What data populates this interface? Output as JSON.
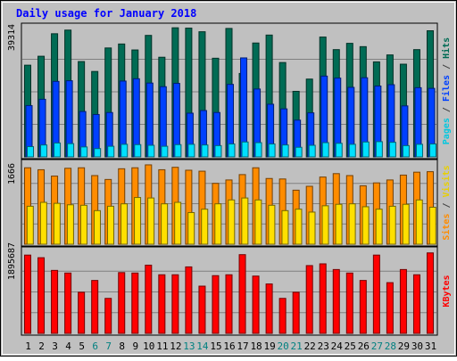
{
  "chart_data": {
    "type": "bar",
    "title": "Daily usage for January 2018",
    "categories": [
      "1",
      "2",
      "3",
      "4",
      "5",
      "6",
      "7",
      "8",
      "9",
      "10",
      "11",
      "12",
      "13",
      "14",
      "15",
      "16",
      "17",
      "18",
      "19",
      "20",
      "21",
      "22",
      "23",
      "24",
      "25",
      "26",
      "27",
      "28",
      "29",
      "30",
      "31"
    ],
    "weekend_days": [
      "6",
      "7",
      "13",
      "14",
      "20",
      "21",
      "27",
      "28"
    ],
    "colors": {
      "background": "#c0c0c0",
      "title": "#0000ff",
      "weekday_label": "#000000",
      "weekend_label": "#008080",
      "hits": "#006b54",
      "files": "#0040ff",
      "pages": "#00e0ff",
      "visits": "#ffe000",
      "sites": "#ff8c00",
      "kbytes": "#ff0000"
    },
    "panels": [
      {
        "id": "hits_files_pages",
        "max_label": "39314",
        "ylim": [
          0,
          39314
        ],
        "right_label": [
          {
            "text": "Pages",
            "color": "#00c8e0"
          },
          {
            "text": " / ",
            "color": "#404040"
          },
          {
            "text": "Files",
            "color": "#0040ff"
          },
          {
            "text": " / ",
            "color": "#404040"
          },
          {
            "text": "Hits",
            "color": "#006b54"
          }
        ],
        "series": [
          {
            "name": "Hits",
            "color": "#006b54",
            "values": [
              27700,
              30400,
              37200,
              38300,
              28800,
              25800,
              32900,
              34100,
              32300,
              36700,
              30100,
              39000,
              38900,
              37800,
              29800,
              38800,
              25200,
              34400,
              36800,
              28500,
              19800,
              23500,
              36200,
              32400,
              34300,
              33300,
              28700,
              30800,
              28000,
              32400,
              38100
            ]
          },
          {
            "name": "Files",
            "color": "#0040ff",
            "values": [
              15500,
              17400,
              22800,
              23000,
              13700,
              12800,
              13400,
              22900,
              23600,
              22300,
              21200,
              22200,
              13200,
              14000,
              13400,
              21900,
              29900,
              20500,
              15900,
              14500,
              11100,
              13300,
              24400,
              23800,
              21000,
              23900,
              21400,
              21800,
              15400,
              20900,
              20700
            ]
          },
          {
            "name": "Pages",
            "color": "#00e0ff",
            "values": [
              3100,
              3600,
              4200,
              4000,
              3000,
              2500,
              3200,
              3800,
              3700,
              3500,
              3200,
              3700,
              3800,
              3600,
              3400,
              3900,
              4500,
              4300,
              3900,
              3600,
              2900,
              3500,
              4300,
              4100,
              3800,
              4500,
              4600,
              4400,
              3400,
              3800,
              3900
            ]
          }
        ]
      },
      {
        "id": "visits_sites",
        "max_label": "1666",
        "ylim": [
          0,
          1666
        ],
        "right_label": [
          {
            "text": "Sites",
            "color": "#ff8c00"
          },
          {
            "text": " / ",
            "color": "#404040"
          },
          {
            "text": "Visits",
            "color": "#e8d000"
          }
        ],
        "series": [
          {
            "name": "Sites",
            "color": "#ff8c00",
            "values": [
              1570,
              1530,
              1400,
              1560,
              1570,
              1410,
              1330,
              1550,
              1570,
              1630,
              1530,
              1580,
              1520,
              1500,
              1250,
              1320,
              1430,
              1570,
              1350,
              1340,
              1110,
              1190,
              1380,
              1450,
              1410,
              1200,
              1260,
              1320,
              1420,
              1480,
              1490
            ]
          },
          {
            "name": "Visits",
            "color": "#ffe000",
            "values": [
              780,
              860,
              840,
              810,
              800,
              690,
              780,
              830,
              960,
              950,
              830,
              860,
              650,
              720,
              830,
              910,
              950,
              910,
              800,
              690,
              720,
              660,
              790,
              820,
              830,
              770,
              720,
              780,
              820,
              910,
              760
            ]
          }
        ]
      },
      {
        "id": "kbytes",
        "max_label": "1895687",
        "ylim": [
          0,
          1895687
        ],
        "right_label": [
          {
            "text": "KBytes",
            "color": "#ff0000"
          }
        ],
        "series": [
          {
            "name": "KBytes",
            "color": "#ff0000",
            "values": [
              1790000,
              1730000,
              1440000,
              1380000,
              940000,
              1210000,
              800000,
              1390000,
              1380000,
              1560000,
              1340000,
              1340000,
              1520000,
              1080000,
              1320000,
              1340000,
              1800000,
              1310000,
              1130000,
              800000,
              940000,
              1550000,
              1590000,
              1460000,
              1380000,
              1210000,
              1790000,
              1160000,
              1460000,
              1340000,
              1840000
            ]
          }
        ]
      }
    ]
  }
}
